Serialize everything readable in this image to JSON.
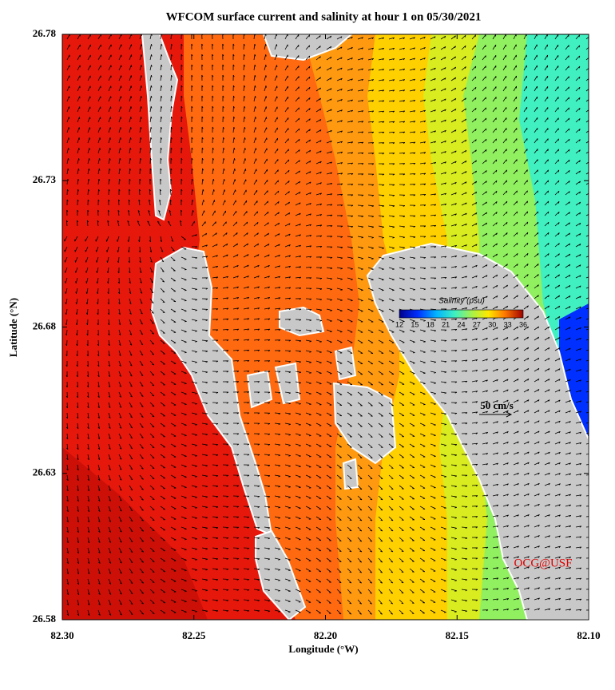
{
  "map": {
    "title": "WFCOM surface current and salinity at hour 1 on 05/30/2021",
    "x_label": "Longitude (°W)",
    "y_label": "Latitude (°N)",
    "xlim": [
      82.3,
      82.1
    ],
    "ylim": [
      26.58,
      26.78
    ],
    "xticks": [
      {
        "value": 82.3,
        "label": "82.30"
      },
      82.25,
      {
        "value": 82.2,
        "label": "82.20"
      },
      82.15,
      {
        "value": 82.1,
        "label": "82.10"
      }
    ],
    "yticks": [
      26.78,
      26.73,
      26.68,
      26.63,
      26.58
    ],
    "colorbar": {
      "title": "Salinity (psu)",
      "ticks": [
        12,
        15,
        18,
        21,
        24,
        27,
        30,
        33,
        36
      ]
    },
    "scale_label": "50 cm/s",
    "credit": "OCG@USF"
  }
}
